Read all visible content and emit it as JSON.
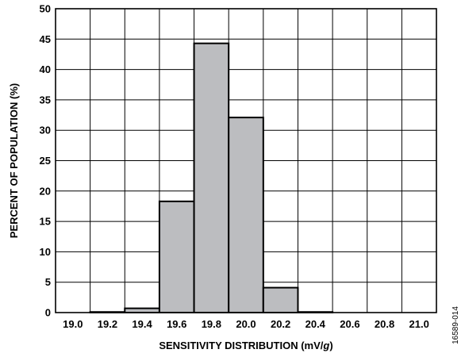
{
  "chart_data": {
    "type": "bar",
    "title": "",
    "xlabel": "SENSITIVITY DISTRIBUTION (mV/g)",
    "ylabel": "PERCENT OF POPULATION (%)",
    "x_ticks": [
      "19.0",
      "19.2",
      "19.4",
      "19.6",
      "19.8",
      "20.0",
      "20.2",
      "20.4",
      "20.6",
      "20.8",
      "21.0"
    ],
    "y_ticks": [
      "0",
      "5",
      "10",
      "15",
      "20",
      "25",
      "30",
      "35",
      "40",
      "45",
      "50"
    ],
    "ylim": [
      0,
      50
    ],
    "xlim": [
      18.9,
      21.1
    ],
    "grid": true,
    "bins": [
      {
        "x0": 19.1,
        "x1": 19.3,
        "value": 0.1
      },
      {
        "x0": 19.3,
        "x1": 19.5,
        "value": 0.7
      },
      {
        "x0": 19.5,
        "x1": 19.7,
        "value": 18.3
      },
      {
        "x0": 19.7,
        "x1": 19.9,
        "value": 44.3
      },
      {
        "x0": 19.9,
        "x1": 20.1,
        "value": 32.1
      },
      {
        "x0": 20.1,
        "x1": 20.3,
        "value": 4.1
      },
      {
        "x0": 20.3,
        "x1": 20.5,
        "value": 0.1
      }
    ],
    "bar_color": "#bcbdc0"
  },
  "figure_id": "16589-014"
}
